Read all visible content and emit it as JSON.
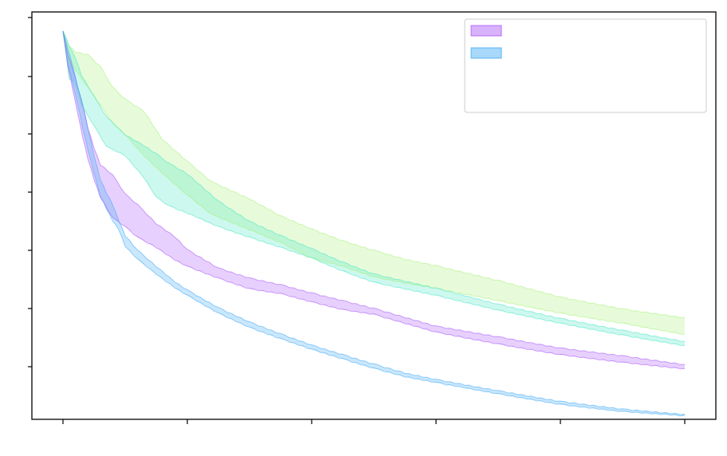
{
  "chart_data": {
    "type": "area",
    "title": "",
    "xlabel": "",
    "ylabel": "",
    "xlim": [
      -0.25,
      5.25
    ],
    "ylim": [
      0,
      6.55
    ],
    "x_ticks": [
      0,
      1,
      2,
      3,
      4,
      5
    ],
    "y_ticks": [
      0.85,
      1.85,
      2.85,
      3.85,
      4.85,
      5.85,
      6.85
    ],
    "grid": false,
    "legend_position": "top-right",
    "series": [
      {
        "color": "#a855f7",
        "in_legend": true,
        "x": [
          0,
          0.04,
          0.08,
          0.12,
          0.16,
          0.2,
          0.25,
          0.3,
          0.4,
          0.5,
          0.6,
          0.75,
          0.9,
          1.0,
          1.25,
          1.5,
          1.75,
          2.0,
          2.25,
          2.5,
          2.75,
          3.0,
          3.5,
          4.0,
          4.5,
          5.0
        ],
        "low": [
          6.55,
          5.95,
          5.55,
          5.15,
          4.75,
          4.4,
          4.05,
          3.75,
          3.4,
          3.25,
          3.07,
          2.9,
          2.69,
          2.58,
          2.38,
          2.2,
          2.12,
          1.98,
          1.85,
          1.77,
          1.62,
          1.47,
          1.27,
          1.09,
          0.96,
          0.85
        ],
        "high": [
          6.55,
          6.15,
          5.9,
          5.6,
          5.3,
          4.92,
          4.58,
          4.3,
          4.12,
          3.8,
          3.62,
          3.3,
          3.08,
          2.86,
          2.55,
          2.38,
          2.27,
          2.13,
          2.0,
          1.87,
          1.72,
          1.57,
          1.39,
          1.2,
          1.07,
          0.92
        ]
      },
      {
        "color": "#3fa9f5",
        "in_legend": true,
        "x": [
          0,
          0.04,
          0.08,
          0.12,
          0.16,
          0.2,
          0.25,
          0.3,
          0.35,
          0.4,
          0.45,
          0.5,
          0.6,
          0.75,
          0.9,
          1.0,
          1.25,
          1.5,
          1.75,
          2.0,
          2.25,
          2.5,
          2.75,
          3.0,
          3.5,
          4.0,
          4.5,
          5.0
        ],
        "low": [
          6.55,
          6.0,
          5.65,
          5.3,
          4.9,
          4.55,
          4.15,
          3.78,
          3.55,
          3.35,
          3.2,
          2.92,
          2.7,
          2.45,
          2.22,
          2.09,
          1.79,
          1.55,
          1.36,
          1.18,
          1.02,
          0.86,
          0.72,
          0.62,
          0.43,
          0.25,
          0.13,
          0.06
        ],
        "high": [
          6.55,
          6.25,
          5.95,
          5.6,
          5.3,
          4.92,
          4.45,
          4.05,
          3.82,
          3.62,
          3.35,
          3.1,
          2.85,
          2.58,
          2.32,
          2.18,
          1.88,
          1.64,
          1.44,
          1.25,
          1.09,
          0.93,
          0.78,
          0.67,
          0.48,
          0.3,
          0.17,
          0.08
        ]
      },
      {
        "color": "#4ae5c5",
        "in_legend": false,
        "x": [
          0,
          0.05,
          0.1,
          0.15,
          0.25,
          0.35,
          0.5,
          0.65,
          0.75,
          0.85,
          1.0,
          1.25,
          1.5,
          1.75,
          2.0,
          2.25,
          2.5,
          2.75,
          3.0,
          3.5,
          4.0,
          4.5,
          5.0
        ],
        "low": [
          6.55,
          5.75,
          5.65,
          5.3,
          4.95,
          4.6,
          4.45,
          4.08,
          3.75,
          3.6,
          3.48,
          3.25,
          3.07,
          2.9,
          2.72,
          2.5,
          2.31,
          2.2,
          2.09,
          1.84,
          1.62,
          1.42,
          1.24
        ],
        "high": [
          6.55,
          6.3,
          6.1,
          5.8,
          5.45,
          5.1,
          4.8,
          4.62,
          4.48,
          4.32,
          4.14,
          3.68,
          3.34,
          3.1,
          2.88,
          2.65,
          2.45,
          2.33,
          2.21,
          1.94,
          1.7,
          1.5,
          1.31
        ]
      },
      {
        "color": "#a8f07a",
        "in_legend": false,
        "x": [
          0,
          0.05,
          0.1,
          0.2,
          0.3,
          0.4,
          0.5,
          0.65,
          0.8,
          1.0,
          1.2,
          1.5,
          1.75,
          2.0,
          2.25,
          2.5,
          2.75,
          3.0,
          3.5,
          4.0,
          4.5,
          5.0
        ],
        "low": [
          6.55,
          6.05,
          5.9,
          5.6,
          5.3,
          5.0,
          4.8,
          4.45,
          4.15,
          3.78,
          3.45,
          3.2,
          2.98,
          2.72,
          2.58,
          2.4,
          2.3,
          2.21,
          2.0,
          1.79,
          1.62,
          1.43
        ],
        "high": [
          6.55,
          6.3,
          6.2,
          6.15,
          5.95,
          5.6,
          5.4,
          5.2,
          4.72,
          4.35,
          4.0,
          3.72,
          3.43,
          3.21,
          3.01,
          2.85,
          2.7,
          2.59,
          2.34,
          2.06,
          1.86,
          1.71
        ]
      }
    ]
  }
}
